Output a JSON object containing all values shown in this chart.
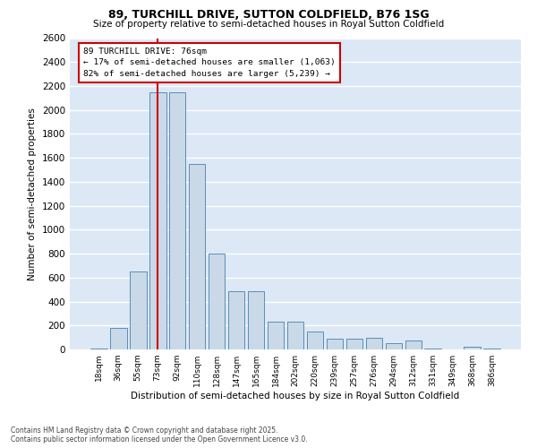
{
  "title_line1": "89, TURCHILL DRIVE, SUTTON COLDFIELD, B76 1SG",
  "subtitle": "Size of property relative to semi-detached houses in Royal Sutton Coldfield",
  "xlabel": "Distribution of semi-detached houses by size in Royal Sutton Coldfield",
  "ylabel": "Number of semi-detached properties",
  "categories": [
    "18sqm",
    "36sqm",
    "55sqm",
    "73sqm",
    "92sqm",
    "110sqm",
    "128sqm",
    "147sqm",
    "165sqm",
    "184sqm",
    "202sqm",
    "220sqm",
    "239sqm",
    "257sqm",
    "276sqm",
    "294sqm",
    "312sqm",
    "331sqm",
    "349sqm",
    "368sqm",
    "386sqm"
  ],
  "values": [
    10,
    180,
    650,
    2150,
    2150,
    1550,
    800,
    490,
    490,
    230,
    230,
    150,
    90,
    90,
    100,
    50,
    75,
    10,
    0,
    20,
    10
  ],
  "bar_color": "#c9d9e8",
  "bar_edge_color": "#5b8db8",
  "fig_bg_color": "#ffffff",
  "plot_bg_color": "#dce8f5",
  "grid_color": "#ffffff",
  "annotation_line1": "89 TURCHILL DRIVE: 76sqm",
  "annotation_line2": "← 17% of semi-detached houses are smaller (1,063)",
  "annotation_line3": "82% of semi-detached houses are larger (5,239) →",
  "annotation_box_edge": "#cc0000",
  "footer_line1": "Contains HM Land Registry data © Crown copyright and database right 2025.",
  "footer_line2": "Contains public sector information licensed under the Open Government Licence v3.0.",
  "ylim": [
    0,
    2600
  ],
  "yticks": [
    0,
    200,
    400,
    600,
    800,
    1000,
    1200,
    1400,
    1600,
    1800,
    2000,
    2200,
    2400,
    2600
  ],
  "red_line_index": 3
}
